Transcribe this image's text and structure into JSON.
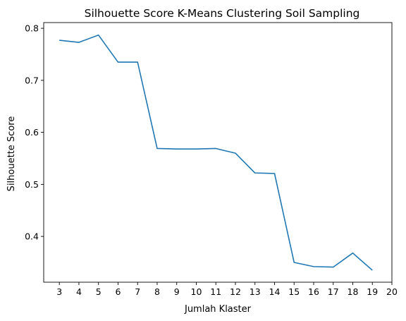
{
  "chart_data": {
    "type": "line",
    "title": "Silhouette Score K-Means Clustering Soil Sampling",
    "xlabel": "Jumlah Klaster",
    "ylabel": "Silhouette Score",
    "x_ticks": [
      3,
      4,
      5,
      6,
      7,
      8,
      9,
      10,
      11,
      12,
      13,
      14,
      15,
      16,
      17,
      18,
      19,
      20
    ],
    "y_ticks": [
      0.4,
      0.5,
      0.6,
      0.7,
      0.8
    ],
    "y_tick_labels": [
      "0.4",
      "0.5",
      "0.6",
      "0.7",
      "0.8"
    ],
    "xlim": [
      2.2,
      20.0
    ],
    "ylim": [
      0.312,
      0.811
    ],
    "grid": false,
    "series": [
      {
        "color": "#1f77b4",
        "x": [
          3,
          4,
          5,
          6,
          7,
          8,
          9,
          10,
          11,
          12,
          13,
          14,
          15,
          16,
          17,
          18,
          19
        ],
        "y": [
          0.777,
          0.773,
          0.787,
          0.735,
          0.735,
          0.569,
          0.568,
          0.568,
          0.569,
          0.56,
          0.522,
          0.521,
          0.35,
          0.342,
          0.341,
          0.368,
          0.335
        ]
      }
    ]
  }
}
